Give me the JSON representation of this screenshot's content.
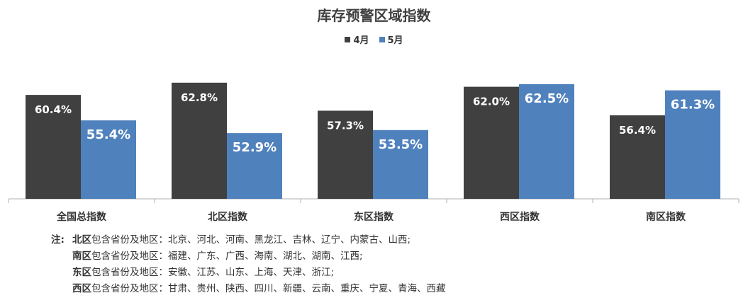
{
  "chart_data": {
    "type": "bar",
    "title": "库存预警区域指数",
    "categories": [
      "全国总指数",
      "北区指数",
      "东区指数",
      "西区指数",
      "南区指数"
    ],
    "series": [
      {
        "name": "4月",
        "color": "#404040",
        "values": [
          60.4,
          62.8,
          57.3,
          62.0,
          56.4
        ],
        "labels": [
          "60.4%",
          "62.8%",
          "57.3%",
          "62.0%",
          "56.4%"
        ]
      },
      {
        "name": "5月",
        "color": "#4f81bd",
        "values": [
          55.4,
          52.9,
          53.5,
          62.5,
          61.3
        ],
        "labels": [
          "55.4%",
          "52.9%",
          "53.5%",
          "62.5%",
          "61.3%"
        ]
      }
    ],
    "ylim": [
      40,
      65
    ],
    "grid": false,
    "legend_position": "top"
  },
  "notes": {
    "prefix": "注:",
    "items": [
      {
        "region": "北区",
        "text": "包含省份及地区：北京、河北、河南、黑龙江、吉林、辽宁、内蒙古、山西;"
      },
      {
        "region": "南区",
        "text": "包含省份及地区：福建、广东、广西、海南、湖北、湖南、江西;"
      },
      {
        "region": "东区",
        "text": "包含省份及地区：安徽、江苏、山东、上海、天津、浙江;"
      },
      {
        "region": "西区",
        "text": "包含省份及地区：甘肃、贵州、陕西、四川、新疆、云南、重庆、宁夏、青海、西藏"
      }
    ]
  }
}
